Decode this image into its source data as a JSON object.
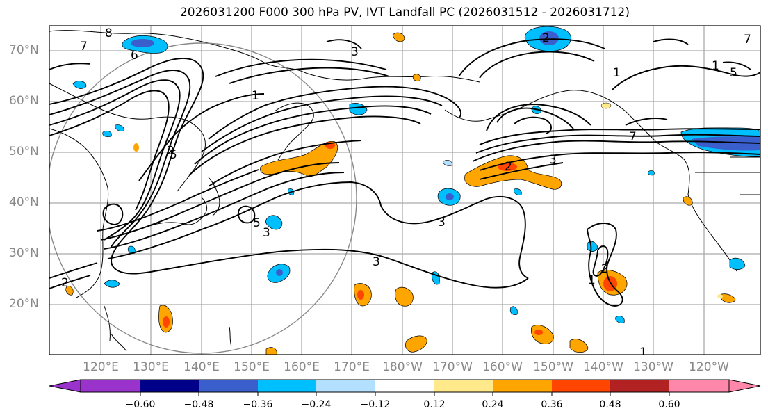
{
  "title": "2026031200 F000 300 hPa PV, IVT Landfall PC (2026031512 - 2026031712)",
  "lat_labels": [
    "70°N",
    "60°N",
    "50°N",
    "40°N",
    "30°N",
    "20°N"
  ],
  "lon_labels": [
    "120°E",
    "130°E",
    "140°E",
    "150°E",
    "160°E",
    "170°E",
    "180°W",
    "170°W",
    "160°W",
    "150°W",
    "140°W",
    "130°W",
    "120°W"
  ],
  "colorbar": {
    "ticks": [
      "−0.60",
      "−0.48",
      "−0.36",
      "−0.24",
      "−0.12",
      "0.12",
      "0.24",
      "0.36",
      "0.48",
      "0.60"
    ],
    "colors": [
      "#9933cc",
      "#000088",
      "#3a5fcd",
      "#00bfff",
      "#b3e0ff",
      "#ffffff",
      "#ffe98a",
      "#ffa500",
      "#ff4500",
      "#b22222",
      "#ff88aa"
    ]
  },
  "contour_labels": [
    "8",
    "7",
    "6",
    "5",
    "1",
    "2",
    "2",
    "3",
    "2",
    "5",
    "3",
    "3",
    "3",
    "1",
    "1",
    "2",
    "7",
    "1",
    "1",
    "5",
    "7",
    "2",
    "3"
  ],
  "colors": {
    "pos_orange": "#ffa500",
    "pos_red": "#ff4500",
    "pos_yellow": "#ffe98a",
    "neg_cyan": "#00bfff",
    "neg_light": "#b3e0ff",
    "neg_blue": "#3a5fcd"
  }
}
